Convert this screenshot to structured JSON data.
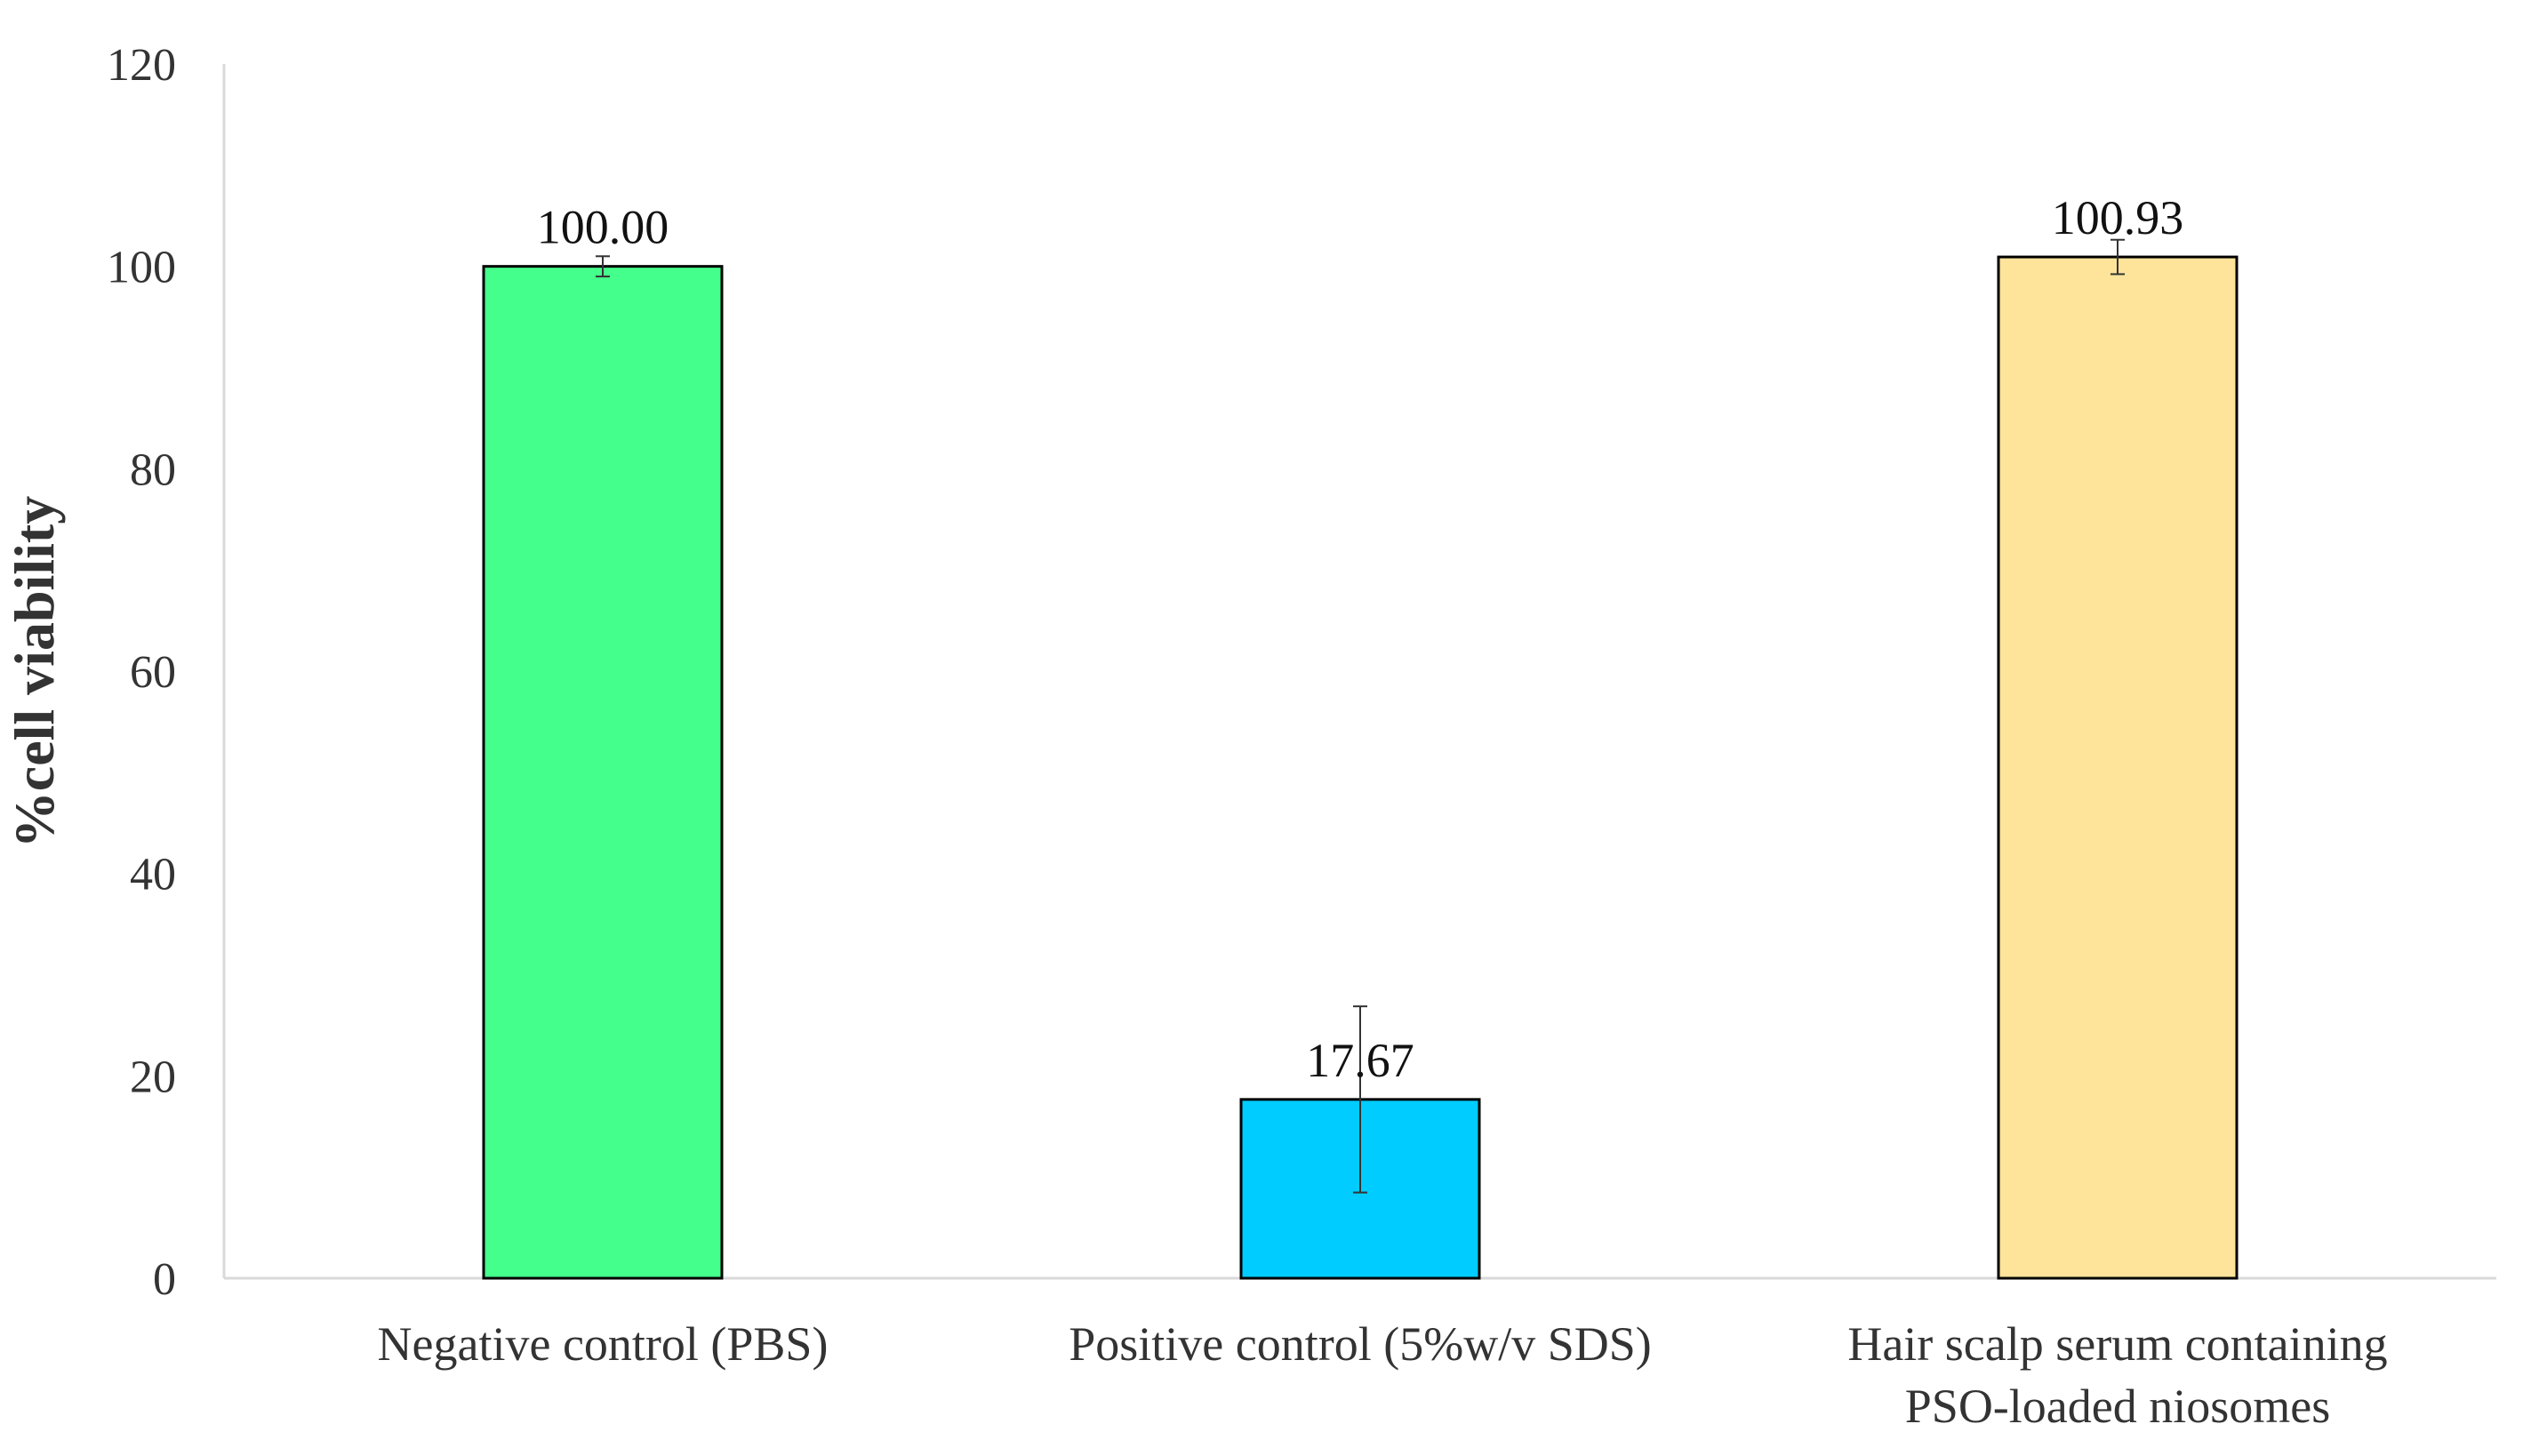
{
  "chart_data": {
    "type": "bar",
    "title": "",
    "xlabel": "",
    "ylabel": "%cell viability",
    "ylim": [
      0,
      120
    ],
    "yticks": [
      0,
      20,
      40,
      60,
      80,
      100,
      120
    ],
    "grid": false,
    "legend": "none",
    "categories": [
      [
        "Negative control (PBS)"
      ],
      [
        "Positive control (5%w/v SDS)"
      ],
      [
        "Hair scalp serum containing",
        "PSO-loaded niosomes"
      ]
    ],
    "values": [
      100.0,
      17.67,
      100.93
    ],
    "value_labels": [
      "100.00",
      "17.67",
      "100.93"
    ],
    "error": [
      1.0,
      9.2,
      1.7
    ],
    "colors": [
      "#45FF8C",
      "#00CCFF",
      "#FDE49A"
    ]
  }
}
